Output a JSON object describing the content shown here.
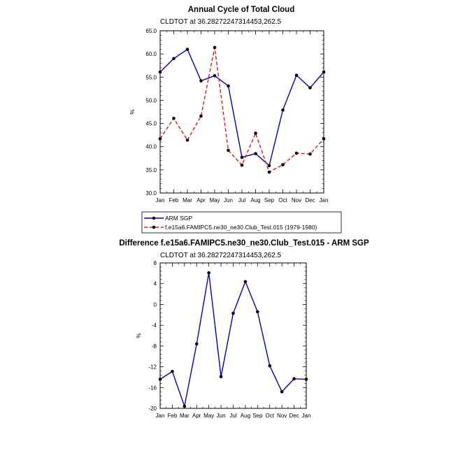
{
  "chart_data": [
    {
      "type": "line",
      "title": "Annual Cycle of Total Cloud",
      "subtitle": "CLDTOT at 36.28272247314453,262.5",
      "xlabel": "",
      "ylabel": "%",
      "categories": [
        "Jan",
        "Feb",
        "Mar",
        "Apr",
        "May",
        "Jun",
        "Jul",
        "Aug",
        "Sep",
        "Oct",
        "Nov",
        "Dec",
        "Jan"
      ],
      "ylim": [
        30,
        65
      ],
      "yticks": [
        30,
        35,
        40,
        45,
        50,
        55,
        60,
        65
      ],
      "ytick_labels": [
        "30.0",
        "35.0",
        "40.0",
        "45.0",
        "50.0",
        "55.0",
        "60.0",
        "65.0"
      ],
      "grid": false,
      "legend_position": "bottom-center",
      "series": [
        {
          "name": "ARM SGP",
          "color": "#0000cc",
          "style": "solid",
          "values": [
            56.1,
            59.0,
            61.0,
            54.2,
            55.3,
            53.1,
            37.7,
            38.5,
            35.9,
            47.9,
            55.4,
            52.7,
            56.1
          ]
        },
        {
          "name": "f.e15a6.FAMIPC5.ne30_ne30.Club_Test.015 (1979-1980)",
          "color": "#ee1111",
          "style": "dashed",
          "values": [
            41.7,
            46.1,
            41.4,
            46.6,
            61.4,
            39.2,
            36.0,
            42.9,
            34.5,
            36.1,
            38.6,
            38.4,
            41.7
          ]
        }
      ]
    },
    {
      "type": "line",
      "title": "Difference f.e15a6.FAMIPC5.ne30_ne30.Club_Test.015 - ARM SGP",
      "subtitle": "CLDTOT at 36.28272247314453,262.5",
      "xlabel": "",
      "ylabel": "%",
      "categories": [
        "Jan",
        "Feb",
        "Mar",
        "Apr",
        "May",
        "Jun",
        "Jul",
        "Aug",
        "Sep",
        "Oct",
        "Nov",
        "Dec",
        "Jan"
      ],
      "ylim": [
        -20,
        8
      ],
      "yticks": [
        -20,
        -16,
        -12,
        -8,
        -4,
        0,
        4,
        8
      ],
      "ytick_labels": [
        "-20",
        "-16",
        "-12",
        "-8",
        "-4",
        "0",
        "4",
        "8"
      ],
      "grid": false,
      "series": [
        {
          "color": "#0000cc",
          "style": "solid",
          "values": [
            -14.4,
            -12.9,
            -19.6,
            -7.6,
            6.1,
            -13.9,
            -1.7,
            4.4,
            -1.4,
            -11.8,
            -16.8,
            -14.3,
            -14.4
          ]
        }
      ]
    }
  ]
}
